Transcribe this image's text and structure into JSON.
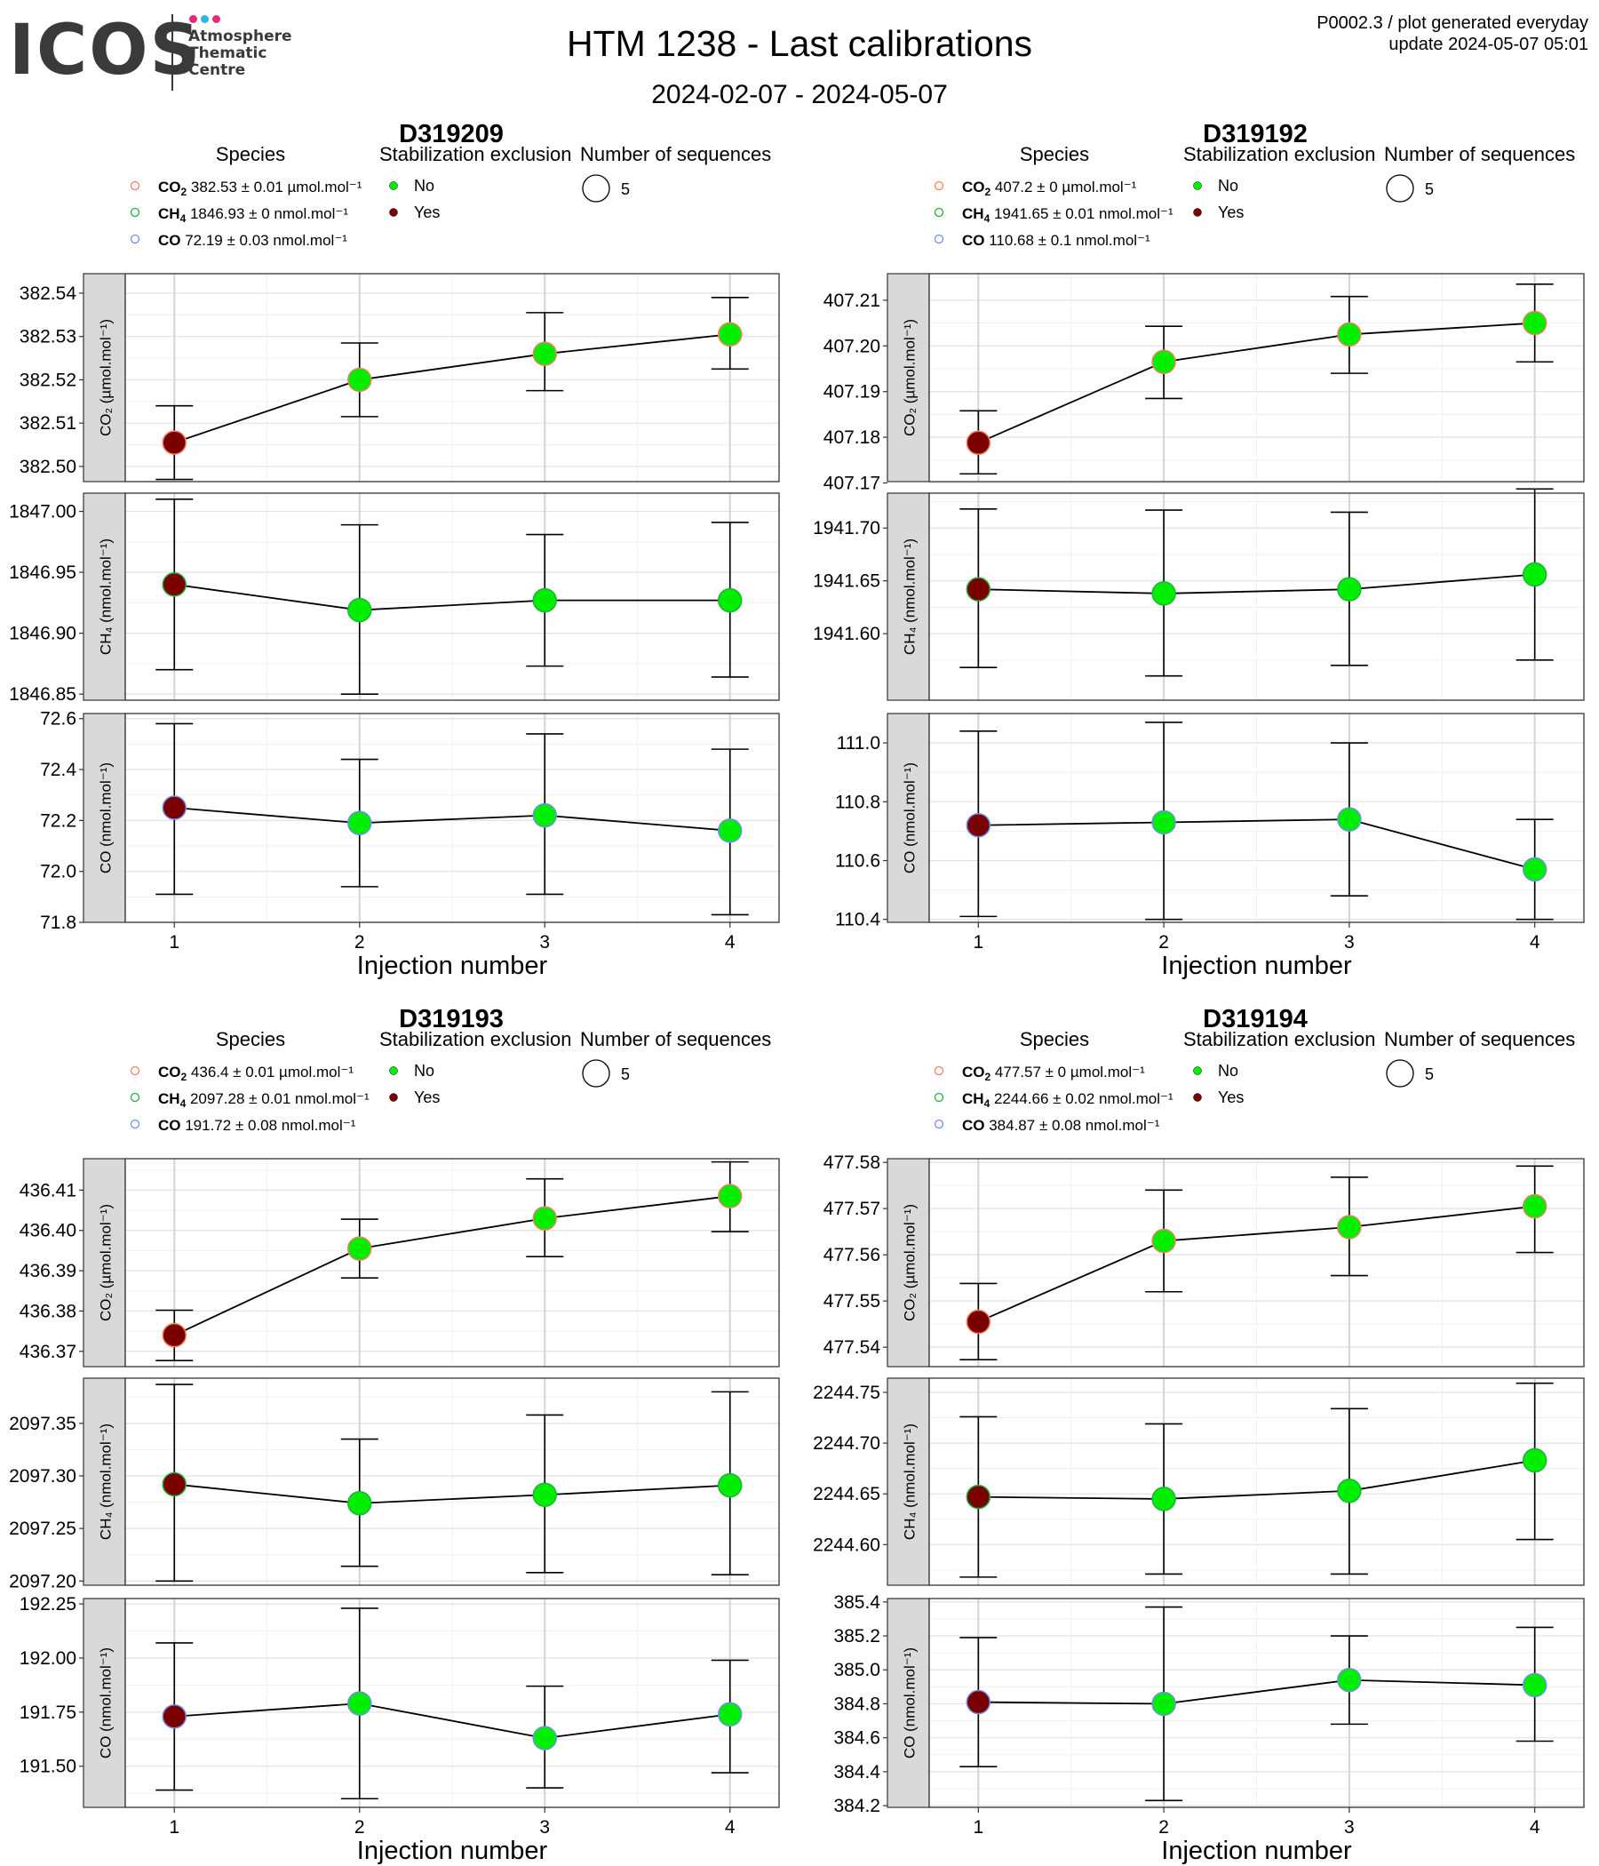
{
  "header": {
    "logo": {
      "brand": "ICOS",
      "lines": [
        "Atmosphere",
        "Thematic",
        "Centre"
      ],
      "dot_colors": [
        "#e6297a",
        "#2fb4e8",
        "#e6297a"
      ]
    },
    "title": "HTM 1238 - Last calibrations",
    "subtitle": "2024-02-07 - 2024-05-07",
    "info_line1": "P0002.3 / plot generated everyday",
    "info_line2": "update  2024-05-07 05:01"
  },
  "legend_titles": {
    "species": "Species",
    "stabilization": "Stabilization exclusion",
    "sequences": "Number of sequences"
  },
  "legend_flags": {
    "no": "No",
    "yes": "Yes"
  },
  "colors": {
    "no": "#00ee00",
    "yes": "#7a0000",
    "co2": "#f08060",
    "ch4": "#20b040",
    "co": "#6f8ff0",
    "strip": "#d9d9d9"
  },
  "xlabel": "Injection number",
  "chart_data": [
    {
      "type": "scatter",
      "title": "D319209",
      "sequences": "5",
      "x": [
        1,
        2,
        3,
        4
      ],
      "legend": [
        {
          "species": "CO2",
          "label": " 382.53 ± 0.01 µmol.mol⁻¹"
        },
        {
          "species": "CH4",
          "label": " 1846.93 ± 0 nmol.mol⁻¹"
        },
        {
          "species": "CO",
          "label": " 72.19 ± 0.03 nmol.mol⁻¹"
        }
      ],
      "panels": [
        {
          "species": "co2",
          "ylabel": "CO₂ (µmol.mol⁻¹)",
          "ylim": [
            382.4965,
            382.5445
          ],
          "yticks": [
            "382.50",
            "382.51",
            "382.52",
            "382.53",
            "382.54"
          ],
          "values": [
            382.5055,
            382.52,
            382.526,
            382.5305
          ],
          "err_lo": [
            382.497,
            382.5115,
            382.5175,
            382.5225
          ],
          "err_hi": [
            382.514,
            382.5285,
            382.5355,
            382.539
          ],
          "excluded": [
            true,
            false,
            false,
            false
          ]
        },
        {
          "species": "ch4",
          "ylabel": "CH₄ (nmol.mol⁻¹)",
          "ylim": [
            1846.845,
            1847.015
          ],
          "yticks": [
            "1846.85",
            "1846.90",
            "1846.95",
            "1847.00"
          ],
          "values": [
            1846.94,
            1846.919,
            1846.927,
            1846.927
          ],
          "err_lo": [
            1846.87,
            1846.85,
            1846.873,
            1846.864
          ],
          "err_hi": [
            1847.01,
            1846.989,
            1846.981,
            1846.991
          ],
          "excluded": [
            true,
            false,
            false,
            false
          ]
        },
        {
          "species": "co",
          "ylabel": "CO (nmol.mol⁻¹)",
          "ylim": [
            71.8,
            72.62
          ],
          "yticks": [
            "71.8",
            "72.0",
            "72.2",
            "72.4",
            "72.6"
          ],
          "values": [
            72.25,
            72.19,
            72.22,
            72.16
          ],
          "err_lo": [
            71.91,
            71.94,
            71.91,
            71.83
          ],
          "err_hi": [
            72.58,
            72.44,
            72.54,
            72.48
          ],
          "excluded": [
            true,
            false,
            false,
            false
          ]
        }
      ]
    },
    {
      "type": "scatter",
      "title": "D319192",
      "sequences": "5",
      "x": [
        1,
        2,
        3,
        4
      ],
      "legend": [
        {
          "species": "CO2",
          "label": " 407.2 ± 0 µmol.mol⁻¹"
        },
        {
          "species": "CH4",
          "label": " 1941.65 ± 0.01 nmol.mol⁻¹"
        },
        {
          "species": "CO",
          "label": " 110.68 ± 0.1 nmol.mol⁻¹"
        }
      ],
      "panels": [
        {
          "species": "co2",
          "ylabel": "CO₂ (µmol.mol⁻¹)",
          "ylim": [
            407.1703,
            407.2158
          ],
          "yticks": [
            "407.17",
            "407.18",
            "407.19",
            "407.20",
            "407.21"
          ],
          "values": [
            407.1788,
            407.1965,
            407.2025,
            407.205
          ],
          "err_lo": [
            407.172,
            407.1885,
            407.194,
            407.1965
          ],
          "err_hi": [
            407.1858,
            407.2043,
            407.2108,
            407.2135
          ],
          "excluded": [
            true,
            false,
            false,
            false
          ]
        },
        {
          "species": "ch4",
          "ylabel": "CH₄ (nmol.mol⁻¹)",
          "ylim": [
            1941.537,
            1941.733
          ],
          "yticks": [
            "1941.60",
            "1941.65",
            "1941.70"
          ],
          "values": [
            1941.642,
            1941.638,
            1941.642,
            1941.656
          ],
          "err_lo": [
            1941.568,
            1941.56,
            1941.57,
            1941.575
          ],
          "err_hi": [
            1941.718,
            1941.717,
            1941.715,
            1941.737
          ],
          "excluded": [
            true,
            false,
            false,
            false
          ]
        },
        {
          "species": "co",
          "ylabel": "CO (nmol.mol⁻¹)",
          "ylim": [
            110.39,
            111.1
          ],
          "yticks": [
            "110.4",
            "110.6",
            "110.8",
            "111.0"
          ],
          "values": [
            110.72,
            110.73,
            110.74,
            110.57
          ],
          "err_lo": [
            110.41,
            110.4,
            110.48,
            110.4
          ],
          "err_hi": [
            111.04,
            111.07,
            111.0,
            110.74
          ],
          "excluded": [
            true,
            false,
            false,
            false
          ]
        }
      ]
    },
    {
      "type": "scatter",
      "title": "D319193",
      "sequences": "5",
      "x": [
        1,
        2,
        3,
        4
      ],
      "legend": [
        {
          "species": "CO2",
          "label": " 436.4 ± 0.01 µmol.mol⁻¹"
        },
        {
          "species": "CH4",
          "label": " 2097.28 ± 0.01 nmol.mol⁻¹"
        },
        {
          "species": "CO",
          "label": " 191.72 ± 0.08 nmol.mol⁻¹"
        }
      ],
      "panels": [
        {
          "species": "co2",
          "ylabel": "CO₂ (µmol.mol⁻¹)",
          "ylim": [
            436.3662,
            436.4178
          ],
          "yticks": [
            "436.37",
            "436.38",
            "436.39",
            "436.40",
            "436.41"
          ],
          "values": [
            436.374,
            436.3955,
            436.403,
            436.4085
          ],
          "err_lo": [
            436.3677,
            436.3882,
            436.3935,
            436.3997
          ],
          "err_hi": [
            436.3802,
            436.4028,
            436.4128,
            436.417
          ],
          "excluded": [
            true,
            false,
            false,
            false
          ]
        },
        {
          "species": "ch4",
          "ylabel": "CH₄ (nmol.mol⁻¹)",
          "ylim": [
            2097.196,
            2097.393
          ],
          "yticks": [
            "2097.20",
            "2097.25",
            "2097.30",
            "2097.35"
          ],
          "values": [
            2097.292,
            2097.274,
            2097.282,
            2097.291
          ],
          "err_lo": [
            2097.2,
            2097.214,
            2097.208,
            2097.206
          ],
          "err_hi": [
            2097.387,
            2097.335,
            2097.358,
            2097.38
          ],
          "excluded": [
            true,
            false,
            false,
            false
          ]
        },
        {
          "species": "co",
          "ylabel": "CO (nmol.mol⁻¹)",
          "ylim": [
            191.31,
            192.275
          ],
          "yticks": [
            "191.50",
            "191.75",
            "192.00",
            "192.25"
          ],
          "values": [
            191.73,
            191.79,
            191.63,
            191.74
          ],
          "err_lo": [
            191.39,
            191.35,
            191.4,
            191.47
          ],
          "err_hi": [
            192.07,
            192.23,
            191.87,
            191.99
          ],
          "excluded": [
            true,
            false,
            false,
            false
          ]
        }
      ]
    },
    {
      "type": "scatter",
      "title": "D319194",
      "sequences": "5",
      "x": [
        1,
        2,
        3,
        4
      ],
      "legend": [
        {
          "species": "CO2",
          "label": " 477.57 ± 0 µmol.mol⁻¹"
        },
        {
          "species": "CH4",
          "label": " 2244.66 ± 0.02 nmol.mol⁻¹"
        },
        {
          "species": "CO",
          "label": " 384.87 ± 0.08 nmol.mol⁻¹"
        }
      ],
      "panels": [
        {
          "species": "co2",
          "ylabel": "CO₂ (µmol.mol⁻¹)",
          "ylim": [
            477.5358,
            477.5808
          ],
          "yticks": [
            "477.54",
            "477.55",
            "477.56",
            "477.57",
            "477.58"
          ],
          "values": [
            477.5455,
            477.563,
            477.566,
            477.5705
          ],
          "err_lo": [
            477.5373,
            477.552,
            477.5555,
            477.5605
          ],
          "err_hi": [
            477.5538,
            477.574,
            477.5768,
            477.5792
          ],
          "excluded": [
            true,
            false,
            false,
            false
          ]
        },
        {
          "species": "ch4",
          "ylabel": "CH₄ (nmol.mol⁻¹)",
          "ylim": [
            2244.56,
            2244.764
          ],
          "yticks": [
            "2244.60",
            "2244.65",
            "2244.70",
            "2244.75"
          ],
          "values": [
            2244.647,
            2244.645,
            2244.653,
            2244.683
          ],
          "err_lo": [
            2244.568,
            2244.571,
            2244.571,
            2244.605
          ],
          "err_hi": [
            2244.726,
            2244.719,
            2244.734,
            2244.759
          ],
          "excluded": [
            true,
            false,
            false,
            false
          ]
        },
        {
          "species": "co",
          "ylabel": "CO (nmol.mol⁻¹)",
          "ylim": [
            384.19,
            385.42
          ],
          "yticks": [
            "384.2",
            "384.4",
            "384.6",
            "384.8",
            "385.0",
            "385.2",
            "385.4"
          ],
          "values": [
            384.81,
            384.8,
            384.94,
            384.91
          ],
          "err_lo": [
            384.43,
            384.23,
            384.68,
            384.58
          ],
          "err_hi": [
            385.19,
            385.37,
            385.2,
            385.25
          ],
          "excluded": [
            true,
            false,
            false,
            false
          ]
        }
      ]
    }
  ]
}
